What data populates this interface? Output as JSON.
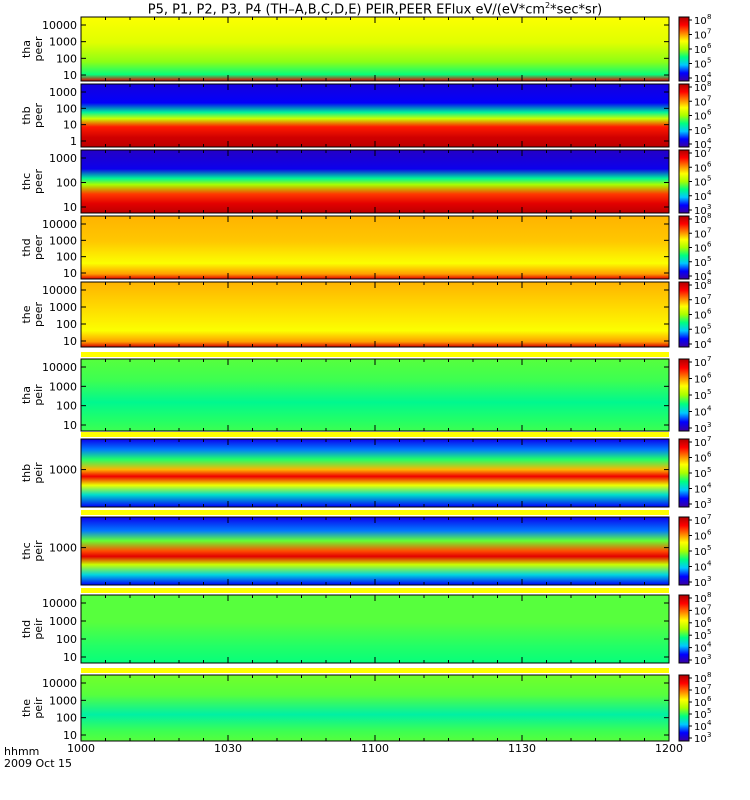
{
  "title_parts": {
    "pre": "P5, P1, P2, P3, P4 (TH–A,B,C,D,E) PEIR,PEER EFlux eV/(eV*cm",
    "sup": "2",
    "post": "*sec*sr)"
  },
  "footer": {
    "line1": "hhmm",
    "line2": "2009 Oct 15"
  },
  "chart_data": {
    "type": "heatmap",
    "x_ticks": [
      "1000",
      "1030",
      "1100",
      "1130",
      "1200"
    ],
    "x_range": [
      0,
      120
    ],
    "colormap": [
      "#3c00a0",
      "#0000ff",
      "#00c8ff",
      "#00ff80",
      "#a8ff00",
      "#ffff00",
      "#ff8000",
      "#ff0000",
      "#b00000"
    ],
    "panels": [
      {
        "probe": "tha",
        "species": "peer",
        "y_ticks": [
          "10000",
          "1000",
          "100",
          "10"
        ],
        "cbar_labels": [
          "10",
          "10",
          "10",
          "10",
          "10"
        ],
        "cbar_exps": [
          "8",
          "7",
          "6",
          "5",
          "4"
        ],
        "bands": [
          [
            0.0,
            0.62
          ],
          [
            0.4,
            0.58
          ],
          [
            0.7,
            0.48
          ],
          [
            0.9,
            0.38
          ],
          [
            1.0,
            0.92
          ]
        ]
      },
      {
        "probe": "thb",
        "species": "peer",
        "y_ticks": [
          "1000",
          "100",
          "10",
          "1"
        ],
        "cbar_labels": [
          "10",
          "10",
          "10",
          "10",
          "10"
        ],
        "cbar_exps": [
          "8",
          "7",
          "6",
          "5",
          "4"
        ],
        "bands": [
          [
            0.0,
            0.08
          ],
          [
            0.3,
            0.12
          ],
          [
            0.45,
            0.35
          ],
          [
            0.55,
            0.55
          ],
          [
            0.68,
            0.85
          ],
          [
            0.85,
            0.95
          ],
          [
            1.0,
            0.98
          ]
        ]
      },
      {
        "probe": "thc",
        "species": "peer",
        "y_ticks": [
          "1000",
          "100",
          "10"
        ],
        "cbar_labels": [
          "10",
          "10",
          "10",
          "10",
          "10"
        ],
        "cbar_exps": [
          "7",
          "6",
          "5",
          "4",
          "3"
        ],
        "bands": [
          [
            0.0,
            0.05
          ],
          [
            0.3,
            0.1
          ],
          [
            0.45,
            0.35
          ],
          [
            0.55,
            0.5
          ],
          [
            0.7,
            0.82
          ],
          [
            0.85,
            0.92
          ],
          [
            1.0,
            0.98
          ]
        ]
      },
      {
        "probe": "thd",
        "species": "peer",
        "y_ticks": [
          "10000",
          "1000",
          "100",
          "10"
        ],
        "cbar_labels": [
          "10",
          "10",
          "10",
          "10",
          "10"
        ],
        "cbar_exps": [
          "8",
          "7",
          "6",
          "5",
          "4"
        ],
        "bands": [
          [
            0.0,
            0.7
          ],
          [
            0.4,
            0.68
          ],
          [
            0.75,
            0.62
          ],
          [
            0.92,
            0.72
          ],
          [
            1.0,
            0.92
          ]
        ]
      },
      {
        "probe": "the",
        "species": "peer",
        "y_ticks": [
          "10000",
          "1000",
          "100",
          "10"
        ],
        "cbar_labels": [
          "10",
          "10",
          "10",
          "10",
          "10"
        ],
        "cbar_exps": [
          "8",
          "7",
          "6",
          "5",
          "4"
        ],
        "bands": [
          [
            0.0,
            0.7
          ],
          [
            0.4,
            0.66
          ],
          [
            0.75,
            0.62
          ],
          [
            0.92,
            0.72
          ],
          [
            1.0,
            0.94
          ]
        ]
      },
      {
        "probe": "tha",
        "species": "peir",
        "y_ticks": [
          "10000",
          "1000",
          "100",
          "10"
        ],
        "cbar_labels": [
          "10",
          "10",
          "10",
          "10",
          "10"
        ],
        "cbar_exps": [
          "7",
          "6",
          "5",
          "4",
          "3"
        ],
        "bands": [
          [
            0.0,
            0.44
          ],
          [
            0.3,
            0.42
          ],
          [
            0.6,
            0.36
          ],
          [
            0.85,
            0.4
          ],
          [
            1.0,
            0.42
          ]
        ]
      },
      {
        "probe": "thb",
        "species": "peir",
        "y_ticks": [
          "1000"
        ],
        "cbar_labels": [
          "10",
          "10",
          "10",
          "10",
          "10"
        ],
        "cbar_exps": [
          "7",
          "6",
          "5",
          "4",
          "3"
        ],
        "bands": [
          [
            0.0,
            0.1
          ],
          [
            0.15,
            0.2
          ],
          [
            0.3,
            0.4
          ],
          [
            0.45,
            0.7
          ],
          [
            0.55,
            0.9
          ],
          [
            0.68,
            0.6
          ],
          [
            0.82,
            0.3
          ],
          [
            1.0,
            0.12
          ]
        ]
      },
      {
        "probe": "thc",
        "species": "peir",
        "y_ticks": [
          "1000"
        ],
        "cbar_labels": [
          "10",
          "10",
          "10",
          "10",
          "10"
        ],
        "cbar_exps": [
          "7",
          "6",
          "5",
          "4",
          "3"
        ],
        "bands": [
          [
            0.0,
            0.1
          ],
          [
            0.2,
            0.2
          ],
          [
            0.35,
            0.45
          ],
          [
            0.5,
            0.8
          ],
          [
            0.58,
            0.92
          ],
          [
            0.7,
            0.55
          ],
          [
            0.85,
            0.28
          ],
          [
            1.0,
            0.12
          ]
        ]
      },
      {
        "probe": "thd",
        "species": "peir",
        "y_ticks": [
          "10000",
          "1000",
          "100",
          "10"
        ],
        "cbar_labels": [
          "10",
          "10",
          "10",
          "10",
          "10",
          "10"
        ],
        "cbar_exps": [
          "8",
          "7",
          "6",
          "5",
          "4",
          "3"
        ],
        "bands": [
          [
            0.0,
            0.44
          ],
          [
            0.4,
            0.44
          ],
          [
            0.75,
            0.4
          ],
          [
            1.0,
            0.38
          ]
        ]
      },
      {
        "probe": "the",
        "species": "peir",
        "y_ticks": [
          "10000",
          "1000",
          "100",
          "10"
        ],
        "cbar_labels": [
          "10",
          "10",
          "10",
          "10",
          "10",
          "10"
        ],
        "cbar_exps": [
          "8",
          "7",
          "6",
          "5",
          "4",
          "3"
        ],
        "bands": [
          [
            0.0,
            0.46
          ],
          [
            0.3,
            0.44
          ],
          [
            0.6,
            0.34
          ],
          [
            0.85,
            0.42
          ],
          [
            1.0,
            0.44
          ]
        ]
      }
    ]
  }
}
